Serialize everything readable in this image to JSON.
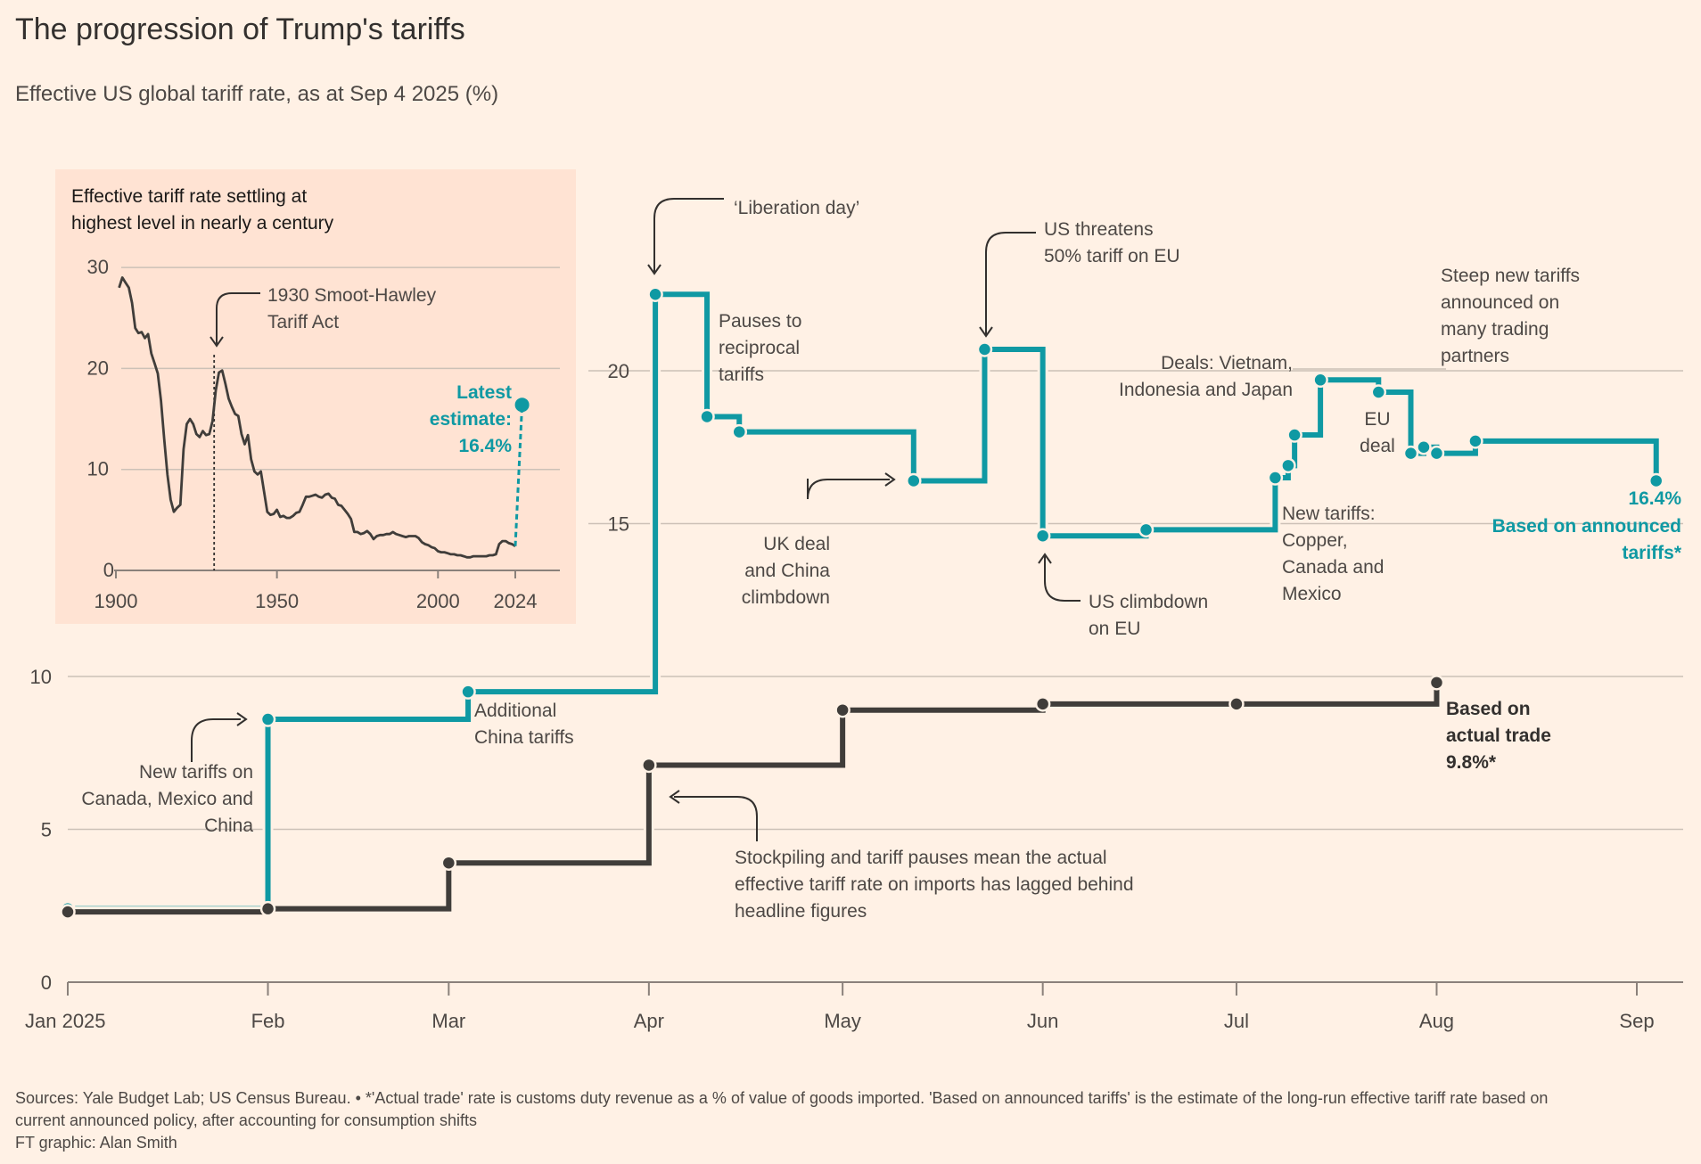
{
  "title": "The progression of Trump's tariffs",
  "subtitle": "Effective US global tariff rate, as at Sep 4 2025 (%)",
  "footer": {
    "line1": "Sources: Yale Budget Lab; US Census Bureau. • *'Actual trade' rate is customs duty revenue as a % of value of goods imported. 'Based on announced tariffs' is the estimate of the long-run effective tariff rate based on",
    "line2": "current announced policy, after accounting for consumption shifts",
    "line3": "FT graphic: Alan Smith"
  },
  "colors": {
    "announced": "#0f99a3",
    "actual": "#403d3a",
    "background": "#fff1e5",
    "inset_background": "#ffe3d3",
    "grid": "#ccc1b7"
  },
  "chart_data": [
    {
      "type": "line",
      "step": true,
      "x_axis": {
        "ticks": [
          {
            "date": "2025-01-01",
            "label": "Jan 2025"
          },
          {
            "date": "2025-02-01",
            "label": "Feb"
          },
          {
            "date": "2025-03-01",
            "label": "Mar"
          },
          {
            "date": "2025-04-01",
            "label": "Apr"
          },
          {
            "date": "2025-05-01",
            "label": "May"
          },
          {
            "date": "2025-06-01",
            "label": "Jun"
          },
          {
            "date": "2025-07-01",
            "label": "Jul"
          },
          {
            "date": "2025-08-01",
            "label": "Aug"
          },
          {
            "date": "2025-09-01",
            "label": "Sep"
          }
        ],
        "range": [
          "2025-01-01",
          "2025-09-05"
        ]
      },
      "y_axis": {
        "ticks": [
          0,
          5,
          10,
          15,
          20
        ],
        "range": [
          0,
          24
        ]
      },
      "grid": true,
      "series": [
        {
          "key": "announced",
          "points": [
            [
              "2025-01-01",
              2.4
            ],
            [
              "2025-02-01",
              8.6
            ],
            [
              "2025-03-04",
              9.5
            ],
            [
              "2025-04-02",
              22.5
            ],
            [
              "2025-04-10",
              18.5
            ],
            [
              "2025-04-15",
              18.0
            ],
            [
              "2025-05-12",
              16.4
            ],
            [
              "2025-05-23",
              20.7
            ],
            [
              "2025-06-01",
              14.6
            ],
            [
              "2025-06-17",
              14.8
            ],
            [
              "2025-07-07",
              16.5
            ],
            [
              "2025-07-09",
              16.9
            ],
            [
              "2025-07-10",
              17.9
            ],
            [
              "2025-07-14",
              19.7
            ],
            [
              "2025-07-23",
              19.3
            ],
            [
              "2025-07-28",
              17.3
            ],
            [
              "2025-07-30",
              17.5
            ],
            [
              "2025-08-01",
              17.3
            ],
            [
              "2025-08-07",
              17.7
            ],
            [
              "2025-09-04",
              16.4
            ]
          ]
        },
        {
          "key": "actual",
          "points": [
            [
              "2025-01-01",
              2.3
            ],
            [
              "2025-02-01",
              2.4
            ],
            [
              "2025-03-01",
              3.9
            ],
            [
              "2025-04-01",
              7.1
            ],
            [
              "2025-05-01",
              8.9
            ],
            [
              "2025-06-01",
              9.1
            ],
            [
              "2025-07-01",
              9.1
            ],
            [
              "2025-08-01",
              9.8
            ]
          ]
        }
      ],
      "annotations": {
        "liberation": [
          "‘Liberation day’"
        ],
        "pauses": [
          "Pauses to",
          "reciprocal",
          "tariffs"
        ],
        "threatens": [
          "US threatens",
          "50% tariff on EU"
        ],
        "steep": [
          "Steep new tariffs",
          "announced on",
          "many trading",
          "partners"
        ],
        "deals": [
          "Deals: Vietnam,",
          "Indonesia and Japan"
        ],
        "eu_deal": [
          "EU",
          "deal"
        ],
        "uk_deal": [
          "UK deal",
          "and China",
          "climbdown"
        ],
        "us_climbdown": [
          "US climbdown",
          "on EU"
        ],
        "new_copper": [
          "New tariffs:",
          "Copper,",
          "Canada and",
          "Mexico"
        ],
        "additional_china": [
          "Additional",
          "China tariffs"
        ],
        "new_canada": [
          "New tariffs on",
          "Canada, Mexico and",
          "China"
        ],
        "stockpiling": [
          "Stockpiling and tariff pauses mean the actual",
          "effective tariff rate on imports has lagged behind",
          "headline figures"
        ],
        "announced_end": [
          "16.4%",
          "Based on announced",
          "tariffs*"
        ],
        "actual_end": [
          "Based on",
          "actual trade",
          "9.8%*"
        ]
      }
    },
    {
      "type": "line",
      "title": [
        "Effective tariff rate settling at",
        "highest level in nearly a century"
      ],
      "x_axis": {
        "ticks": [
          1900,
          1950,
          2000,
          2024
        ],
        "range": [
          1900,
          2030
        ]
      },
      "y_axis": {
        "ticks": [
          0,
          10,
          20,
          30
        ],
        "range": [
          0,
          30
        ]
      },
      "annotations": {
        "smoot": [
          "1930 Smoot-Hawley",
          "Tariff Act"
        ],
        "latest": [
          "Latest",
          "estimate:",
          "16.4%"
        ]
      },
      "latest_estimate": {
        "year": 2025,
        "value": 16.4
      },
      "series": [
        {
          "key": "historical",
          "points": [
            [
              1901,
              28
            ],
            [
              1902,
              29
            ],
            [
              1903,
              28.5
            ],
            [
              1904,
              28
            ],
            [
              1905,
              26.5
            ],
            [
              1906,
              24
            ],
            [
              1907,
              23.5
            ],
            [
              1908,
              23.6
            ],
            [
              1909,
              23
            ],
            [
              1910,
              23.4
            ],
            [
              1911,
              21.5
            ],
            [
              1912,
              20.5
            ],
            [
              1913,
              19.5
            ],
            [
              1914,
              16.8
            ],
            [
              1915,
              13
            ],
            [
              1916,
              9.5
            ],
            [
              1917,
              7
            ],
            [
              1918,
              5.8
            ],
            [
              1919,
              6.2
            ],
            [
              1920,
              6.5
            ],
            [
              1921,
              12
            ],
            [
              1922,
              14.5
            ],
            [
              1923,
              15
            ],
            [
              1924,
              14.5
            ],
            [
              1925,
              13.5
            ],
            [
              1926,
              13.2
            ],
            [
              1927,
              13.8
            ],
            [
              1928,
              13.4
            ],
            [
              1929,
              13.5
            ],
            [
              1930,
              14.8
            ],
            [
              1931,
              17.8
            ],
            [
              1932,
              19.6
            ],
            [
              1933,
              19.8
            ],
            [
              1934,
              18.5
            ],
            [
              1935,
              17
            ],
            [
              1936,
              16.2
            ],
            [
              1937,
              15.5
            ],
            [
              1938,
              15.3
            ],
            [
              1939,
              13.5
            ],
            [
              1940,
              12.5
            ],
            [
              1941,
              13.4
            ],
            [
              1942,
              11
            ],
            [
              1943,
              9.8
            ],
            [
              1944,
              9.5
            ],
            [
              1945,
              9.8
            ],
            [
              1946,
              7.8
            ],
            [
              1947,
              5.8
            ],
            [
              1948,
              5.5
            ],
            [
              1949,
              5.6
            ],
            [
              1950,
              6
            ],
            [
              1951,
              5.3
            ],
            [
              1952,
              5.4
            ],
            [
              1953,
              5.2
            ],
            [
              1954,
              5.2
            ],
            [
              1955,
              5.4
            ],
            [
              1956,
              5.7
            ],
            [
              1957,
              5.8
            ],
            [
              1958,
              6.5
            ],
            [
              1959,
              7.3
            ],
            [
              1960,
              7.3
            ],
            [
              1961,
              7.4
            ],
            [
              1962,
              7.5
            ],
            [
              1963,
              7.3
            ],
            [
              1964,
              7.2
            ],
            [
              1965,
              7.5
            ],
            [
              1966,
              7.6
            ],
            [
              1967,
              7.2
            ],
            [
              1968,
              7.1
            ],
            [
              1969,
              6.5
            ],
            [
              1970,
              6.4
            ],
            [
              1971,
              6
            ],
            [
              1972,
              5.6
            ],
            [
              1973,
              5.1
            ],
            [
              1974,
              3.8
            ],
            [
              1975,
              3.8
            ],
            [
              1976,
              3.6
            ],
            [
              1977,
              3.7
            ],
            [
              1978,
              3.9
            ],
            [
              1979,
              3.6
            ],
            [
              1980,
              3.1
            ],
            [
              1981,
              3.4
            ],
            [
              1982,
              3.5
            ],
            [
              1983,
              3.5
            ],
            [
              1984,
              3.6
            ],
            [
              1985,
              3.6
            ],
            [
              1986,
              3.8
            ],
            [
              1987,
              3.6
            ],
            [
              1988,
              3.5
            ],
            [
              1989,
              3.4
            ],
            [
              1990,
              3.3
            ],
            [
              1991,
              3.4
            ],
            [
              1992,
              3.4
            ],
            [
              1993,
              3.4
            ],
            [
              1994,
              3.2
            ],
            [
              1995,
              2.8
            ],
            [
              1996,
              2.6
            ],
            [
              1997,
              2.5
            ],
            [
              1998,
              2.3
            ],
            [
              1999,
              2.2
            ],
            [
              2000,
              1.9
            ],
            [
              2001,
              1.8
            ],
            [
              2002,
              1.8
            ],
            [
              2003,
              1.7
            ],
            [
              2004,
              1.6
            ],
            [
              2005,
              1.6
            ],
            [
              2006,
              1.5
            ],
            [
              2007,
              1.5
            ],
            [
              2008,
              1.4
            ],
            [
              2009,
              1.3
            ],
            [
              2010,
              1.3
            ],
            [
              2011,
              1.4
            ],
            [
              2012,
              1.4
            ],
            [
              2013,
              1.4
            ],
            [
              2014,
              1.4
            ],
            [
              2015,
              1.4
            ],
            [
              2016,
              1.5
            ],
            [
              2017,
              1.5
            ],
            [
              2018,
              1.6
            ],
            [
              2019,
              2.6
            ],
            [
              2020,
              2.9
            ],
            [
              2021,
              2.9
            ],
            [
              2022,
              2.7
            ],
            [
              2023,
              2.6
            ],
            [
              2024,
              2.4
            ]
          ]
        }
      ]
    }
  ]
}
